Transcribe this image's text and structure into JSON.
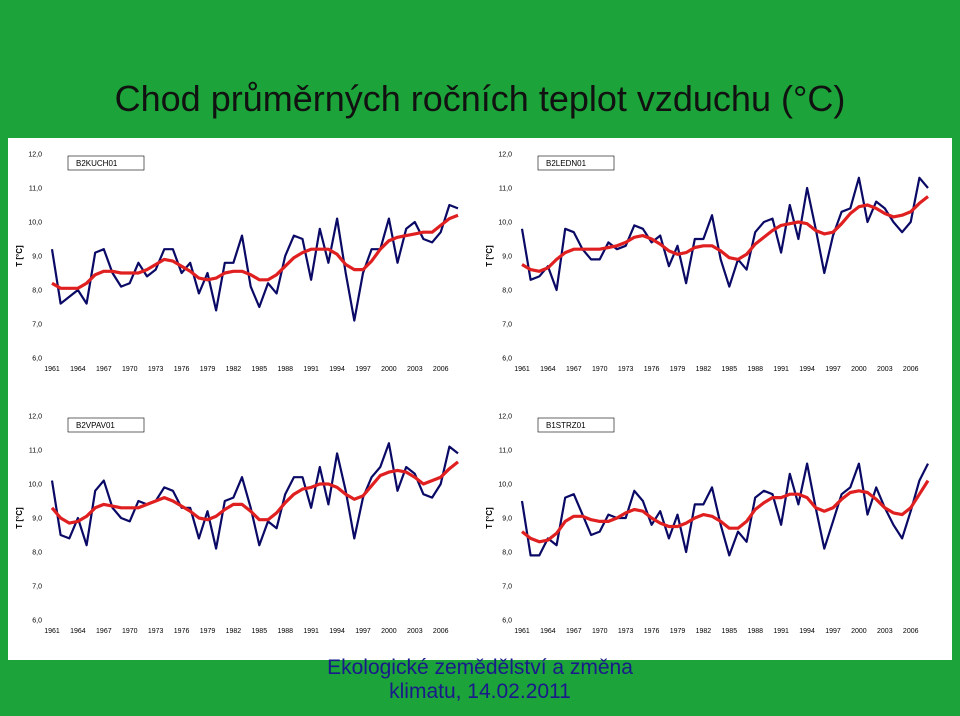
{
  "title": "Chod průměrných ročních teplot vzduchu (°C)",
  "footer": {
    "line1": "Ekologické zemědělství a změna",
    "line2": "klimatu, 14.02.2011"
  },
  "colors": {
    "background": "#1ca339",
    "observed": "#0a0a66",
    "smoothed": "#e02020"
  },
  "chart_data": [
    {
      "type": "line",
      "legend": "B2KUCH01",
      "ylabel": "T [°C]",
      "ylim": [
        6,
        12
      ],
      "yticks": [
        "6,0",
        "7,0",
        "8,0",
        "9,0",
        "10,0",
        "11,0",
        "12,0"
      ],
      "xticks": [
        "1961",
        "1964",
        "1967",
        "1970",
        "1973",
        "1976",
        "1979",
        "1982",
        "1985",
        "1988",
        "1991",
        "1994",
        "1997",
        "2000",
        "2003",
        "2006"
      ],
      "x": [
        1961,
        1962,
        1963,
        1964,
        1965,
        1966,
        1967,
        1968,
        1969,
        1970,
        1971,
        1972,
        1973,
        1974,
        1975,
        1976,
        1977,
        1978,
        1979,
        1980,
        1981,
        1982,
        1983,
        1984,
        1985,
        1986,
        1987,
        1988,
        1989,
        1990,
        1991,
        1992,
        1993,
        1994,
        1995,
        1996,
        1997,
        1998,
        1999,
        2000,
        2001,
        2002,
        2003,
        2004,
        2005,
        2006,
        2007,
        2008
      ],
      "series": [
        {
          "values": [
            9.2,
            7.6,
            7.8,
            8.0,
            7.6,
            9.1,
            9.2,
            8.5,
            8.1,
            8.2,
            8.8,
            8.4,
            8.6,
            9.2,
            9.2,
            8.5,
            8.8,
            7.9,
            8.5,
            7.4,
            8.8,
            8.8,
            9.6,
            8.1,
            7.5,
            8.2,
            7.9,
            9.0,
            9.6,
            9.5,
            8.3,
            9.8,
            8.8,
            10.1,
            8.5,
            7.1,
            8.5,
            9.2,
            9.2,
            10.1,
            8.8,
            9.8,
            10.0,
            9.5,
            9.4,
            9.7,
            10.5,
            10.4
          ]
        },
        {
          "values": [
            8.2,
            8.05,
            8.05,
            8.05,
            8.2,
            8.45,
            8.55,
            8.55,
            8.5,
            8.5,
            8.5,
            8.6,
            8.75,
            8.9,
            8.85,
            8.7,
            8.55,
            8.35,
            8.3,
            8.35,
            8.5,
            8.55,
            8.55,
            8.45,
            8.3,
            8.3,
            8.45,
            8.7,
            8.95,
            9.1,
            9.2,
            9.2,
            9.2,
            9.05,
            8.75,
            8.6,
            8.6,
            8.85,
            9.2,
            9.45,
            9.55,
            9.6,
            9.65,
            9.7,
            9.7,
            9.9,
            10.1,
            10.2
          ]
        }
      ]
    },
    {
      "type": "line",
      "legend": "B2LEDN01",
      "ylabel": "T [°C]",
      "ylim": [
        6,
        12
      ],
      "yticks": [
        "6,0",
        "7,0",
        "8,0",
        "9,0",
        "10,0",
        "11,0",
        "12,0"
      ],
      "xticks": [
        "1961",
        "1964",
        "1967",
        "1970",
        "1973",
        "1976",
        "1979",
        "1982",
        "1985",
        "1988",
        "1991",
        "1994",
        "1997",
        "2000",
        "2003",
        "2006"
      ],
      "x": [
        1961,
        1962,
        1963,
        1964,
        1965,
        1966,
        1967,
        1968,
        1969,
        1970,
        1971,
        1972,
        1973,
        1974,
        1975,
        1976,
        1977,
        1978,
        1979,
        1980,
        1981,
        1982,
        1983,
        1984,
        1985,
        1986,
        1987,
        1988,
        1989,
        1990,
        1991,
        1992,
        1993,
        1994,
        1995,
        1996,
        1997,
        1998,
        1999,
        2000,
        2001,
        2002,
        2003,
        2004,
        2005,
        2006,
        2007,
        2008
      ],
      "series": [
        {
          "values": [
            9.8,
            8.3,
            8.4,
            8.7,
            8.0,
            9.8,
            9.7,
            9.2,
            8.9,
            8.9,
            9.4,
            9.2,
            9.3,
            9.9,
            9.8,
            9.4,
            9.6,
            8.7,
            9.3,
            8.2,
            9.5,
            9.5,
            10.2,
            8.9,
            8.1,
            8.9,
            8.6,
            9.7,
            10.0,
            10.1,
            9.1,
            10.5,
            9.5,
            11.0,
            9.8,
            8.5,
            9.6,
            10.3,
            10.4,
            11.3,
            10.0,
            10.6,
            10.4,
            10.0,
            9.7,
            10.0,
            11.3,
            11.0
          ]
        },
        {
          "values": [
            8.75,
            8.6,
            8.55,
            8.65,
            8.9,
            9.1,
            9.2,
            9.2,
            9.2,
            9.2,
            9.25,
            9.3,
            9.4,
            9.55,
            9.6,
            9.5,
            9.35,
            9.15,
            9.05,
            9.1,
            9.25,
            9.3,
            9.3,
            9.15,
            8.95,
            8.9,
            9.05,
            9.35,
            9.55,
            9.75,
            9.9,
            9.95,
            10.0,
            9.95,
            9.75,
            9.65,
            9.7,
            9.95,
            10.25,
            10.45,
            10.5,
            10.4,
            10.25,
            10.15,
            10.2,
            10.3,
            10.55,
            10.75
          ]
        }
      ]
    },
    {
      "type": "line",
      "legend": "B2VPAV01",
      "ylabel": "T [°C]",
      "ylim": [
        6,
        12
      ],
      "yticks": [
        "6,0",
        "7,0",
        "8,0",
        "9,0",
        "10,0",
        "11,0",
        "12,0"
      ],
      "xticks": [
        "1961",
        "1964",
        "1967",
        "1970",
        "1973",
        "1976",
        "1979",
        "1982",
        "1985",
        "1988",
        "1991",
        "1994",
        "1997",
        "2000",
        "2003",
        "2006"
      ],
      "x": [
        1961,
        1962,
        1963,
        1964,
        1965,
        1966,
        1967,
        1968,
        1969,
        1970,
        1971,
        1972,
        1973,
        1974,
        1975,
        1976,
        1977,
        1978,
        1979,
        1980,
        1981,
        1982,
        1983,
        1984,
        1985,
        1986,
        1987,
        1988,
        1989,
        1990,
        1991,
        1992,
        1993,
        1994,
        1995,
        1996,
        1997,
        1998,
        1999,
        2000,
        2001,
        2002,
        2003,
        2004,
        2005,
        2006,
        2007,
        2008
      ],
      "series": [
        {
          "values": [
            10.1,
            8.5,
            8.4,
            9.0,
            8.2,
            9.8,
            10.1,
            9.3,
            9.0,
            8.9,
            9.5,
            9.4,
            9.5,
            9.9,
            9.8,
            9.3,
            9.3,
            8.4,
            9.2,
            8.1,
            9.5,
            9.6,
            10.2,
            9.3,
            8.2,
            8.9,
            8.7,
            9.7,
            10.2,
            10.2,
            9.3,
            10.5,
            9.4,
            10.9,
            9.8,
            8.4,
            9.6,
            10.2,
            10.5,
            11.2,
            9.8,
            10.5,
            10.3,
            9.7,
            9.6,
            10.0,
            11.1,
            10.9
          ]
        },
        {
          "values": [
            9.3,
            9.0,
            8.85,
            8.9,
            9.05,
            9.3,
            9.4,
            9.35,
            9.3,
            9.3,
            9.3,
            9.4,
            9.5,
            9.6,
            9.5,
            9.35,
            9.2,
            9.0,
            8.95,
            9.05,
            9.25,
            9.4,
            9.4,
            9.2,
            8.95,
            8.95,
            9.15,
            9.45,
            9.7,
            9.85,
            9.9,
            10.0,
            10.0,
            9.9,
            9.7,
            9.55,
            9.65,
            9.95,
            10.25,
            10.35,
            10.4,
            10.35,
            10.2,
            10.0,
            10.1,
            10.2,
            10.45,
            10.65
          ]
        }
      ]
    },
    {
      "type": "line",
      "legend": "B1STRZ01",
      "ylabel": "T [°C]",
      "ylim": [
        6,
        12
      ],
      "yticks": [
        "6,0",
        "7,0",
        "8,0",
        "9,0",
        "10,0",
        "11,0",
        "12,0"
      ],
      "xticks": [
        "1961",
        "1964",
        "1967",
        "1970",
        "1973",
        "1976",
        "1979",
        "1982",
        "1985",
        "1988",
        "1991",
        "1994",
        "1997",
        "2000",
        "2003",
        "2006"
      ],
      "x": [
        1961,
        1962,
        1963,
        1964,
        1965,
        1966,
        1967,
        1968,
        1969,
        1970,
        1971,
        1972,
        1973,
        1974,
        1975,
        1976,
        1977,
        1978,
        1979,
        1980,
        1981,
        1982,
        1983,
        1984,
        1985,
        1986,
        1987,
        1988,
        1989,
        1990,
        1991,
        1992,
        1993,
        1994,
        1995,
        1996,
        1997,
        1998,
        1999,
        2000,
        2001,
        2002,
        2003,
        2004,
        2005,
        2006,
        2007,
        2008
      ],
      "series": [
        {
          "values": [
            9.5,
            7.9,
            7.9,
            8.4,
            8.2,
            9.6,
            9.7,
            9.1,
            8.5,
            8.6,
            9.1,
            9.0,
            9.0,
            9.8,
            9.5,
            8.8,
            9.2,
            8.4,
            9.1,
            8.0,
            9.4,
            9.4,
            9.9,
            8.8,
            7.9,
            8.6,
            8.3,
            9.6,
            9.8,
            9.7,
            8.8,
            10.3,
            9.4,
            10.6,
            9.3,
            8.1,
            8.9,
            9.7,
            9.9,
            10.6,
            9.1,
            9.9,
            9.3,
            8.8,
            8.4,
            9.2,
            10.1,
            10.6
          ]
        },
        {
          "values": [
            8.6,
            8.4,
            8.3,
            8.35,
            8.55,
            8.9,
            9.05,
            9.05,
            8.95,
            8.9,
            8.9,
            9.0,
            9.15,
            9.25,
            9.2,
            9.0,
            8.85,
            8.75,
            8.75,
            8.85,
            9.0,
            9.1,
            9.05,
            8.9,
            8.7,
            8.7,
            8.9,
            9.25,
            9.45,
            9.6,
            9.6,
            9.7,
            9.7,
            9.6,
            9.3,
            9.2,
            9.3,
            9.55,
            9.75,
            9.8,
            9.75,
            9.55,
            9.3,
            9.15,
            9.1,
            9.3,
            9.7,
            10.1
          ]
        }
      ]
    }
  ]
}
